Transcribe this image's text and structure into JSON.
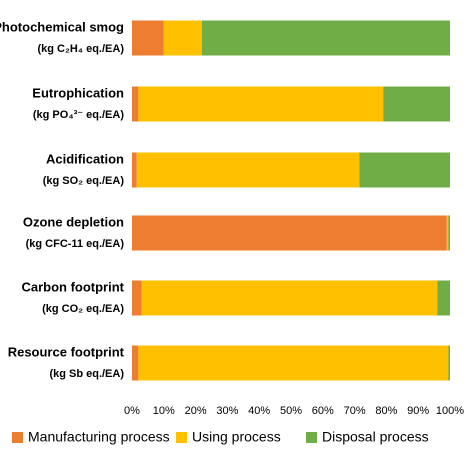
{
  "chart_data": {
    "type": "stacked-barh",
    "categories": [
      "Photochemical smog",
      "Eutrophication",
      "Acidification",
      "Ozone depletion",
      "Carbon footprint",
      "Resource footprint"
    ],
    "units": [
      "(kg C₂H₄ eq./EA)",
      "(kg PO₄³⁻ eq./EA)",
      "(kg SO₂ eq./EA)",
      "(kg CFC-11 eq./EA)",
      "(kg CO₂ eq./EA)",
      "(kg Sb eq./EA)"
    ],
    "series": [
      {
        "name": "Manufacturing process",
        "color": "#ED7D31",
        "values": [
          10,
          2,
          1.5,
          99,
          3,
          2
        ]
      },
      {
        "name": "Using process",
        "color": "#FFC000",
        "values": [
          12,
          77,
          70,
          0.5,
          93,
          97.5
        ]
      },
      {
        "name": "Disposal process",
        "color": "#70AD47",
        "values": [
          78,
          21,
          28.5,
          0.5,
          4,
          0.5
        ]
      }
    ],
    "xlim": [
      0,
      100
    ],
    "xticks": [
      {
        "value": 0,
        "label": "0%"
      },
      {
        "value": 10,
        "label": "10%"
      },
      {
        "value": 20,
        "label": "20%"
      },
      {
        "value": 30,
        "label": "30%"
      },
      {
        "value": 40,
        "label": "40%"
      },
      {
        "value": 50,
        "label": "50%"
      },
      {
        "value": 60,
        "label": "60%"
      },
      {
        "value": 70,
        "label": "70%"
      },
      {
        "value": 80,
        "label": "80%"
      },
      {
        "value": 90,
        "label": "90%"
      },
      {
        "value": 100,
        "label": "100%"
      }
    ],
    "legend": "bottom"
  }
}
